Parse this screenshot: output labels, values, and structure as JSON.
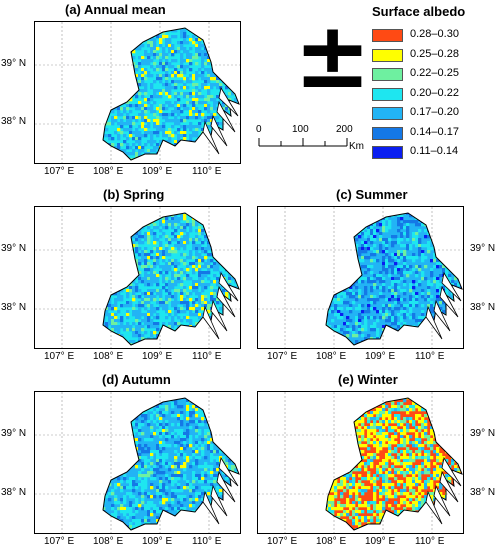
{
  "panels": [
    {
      "id": "a",
      "title": "(a) Annual mean",
      "scheme": "annual",
      "xticks": [
        "107° E",
        "108° E",
        "109° E",
        "110° E"
      ],
      "yticks": [
        "39° N",
        "38° N"
      ],
      "ytick_side": "left"
    },
    {
      "id": "b",
      "title": "(b) Spring",
      "scheme": "spring",
      "xticks": [
        "107° E",
        "108° E",
        "109° E",
        "110° E"
      ],
      "yticks": [
        "39° N",
        "38° N"
      ],
      "ytick_side": "left"
    },
    {
      "id": "c",
      "title": "(c) Summer",
      "scheme": "summer",
      "xticks": [
        "107° E",
        "108° E",
        "109° E",
        "110° E"
      ],
      "yticks": [
        "39° N",
        "38° N"
      ],
      "ytick_side": "right"
    },
    {
      "id": "d",
      "title": "(d) Autumn",
      "scheme": "autumn",
      "xticks": [
        "107° E",
        "108° E",
        "109° E",
        "110° E"
      ],
      "yticks": [
        "39° N",
        "38° N"
      ],
      "ytick_side": "left"
    },
    {
      "id": "e",
      "title": "(e) Winter",
      "scheme": "winter",
      "xticks": [
        "107° E",
        "108° E",
        "109° E",
        "110° E"
      ],
      "yticks": [
        "39° N",
        "38° N"
      ],
      "ytick_side": "right"
    }
  ],
  "legend": {
    "title": "Surface albedo",
    "classes": [
      {
        "label": "0.28–0.30",
        "color": "#ff4a14"
      },
      {
        "label": "0.25–0.28",
        "color": "#ffff00"
      },
      {
        "label": "0.22–0.25",
        "color": "#6ef0a0"
      },
      {
        "label": "0.20–0.22",
        "color": "#1ee6f0"
      },
      {
        "label": "0.17–0.20",
        "color": "#22b4f5"
      },
      {
        "label": "0.14–0.17",
        "color": "#1478e6"
      },
      {
        "label": "0.11–0.14",
        "color": "#0a1ef0"
      }
    ]
  },
  "north_arrow": {
    "symbol": "±"
  },
  "scale_bar": {
    "ticks": [
      "0",
      "100",
      "200"
    ],
    "unit": "Km"
  }
}
